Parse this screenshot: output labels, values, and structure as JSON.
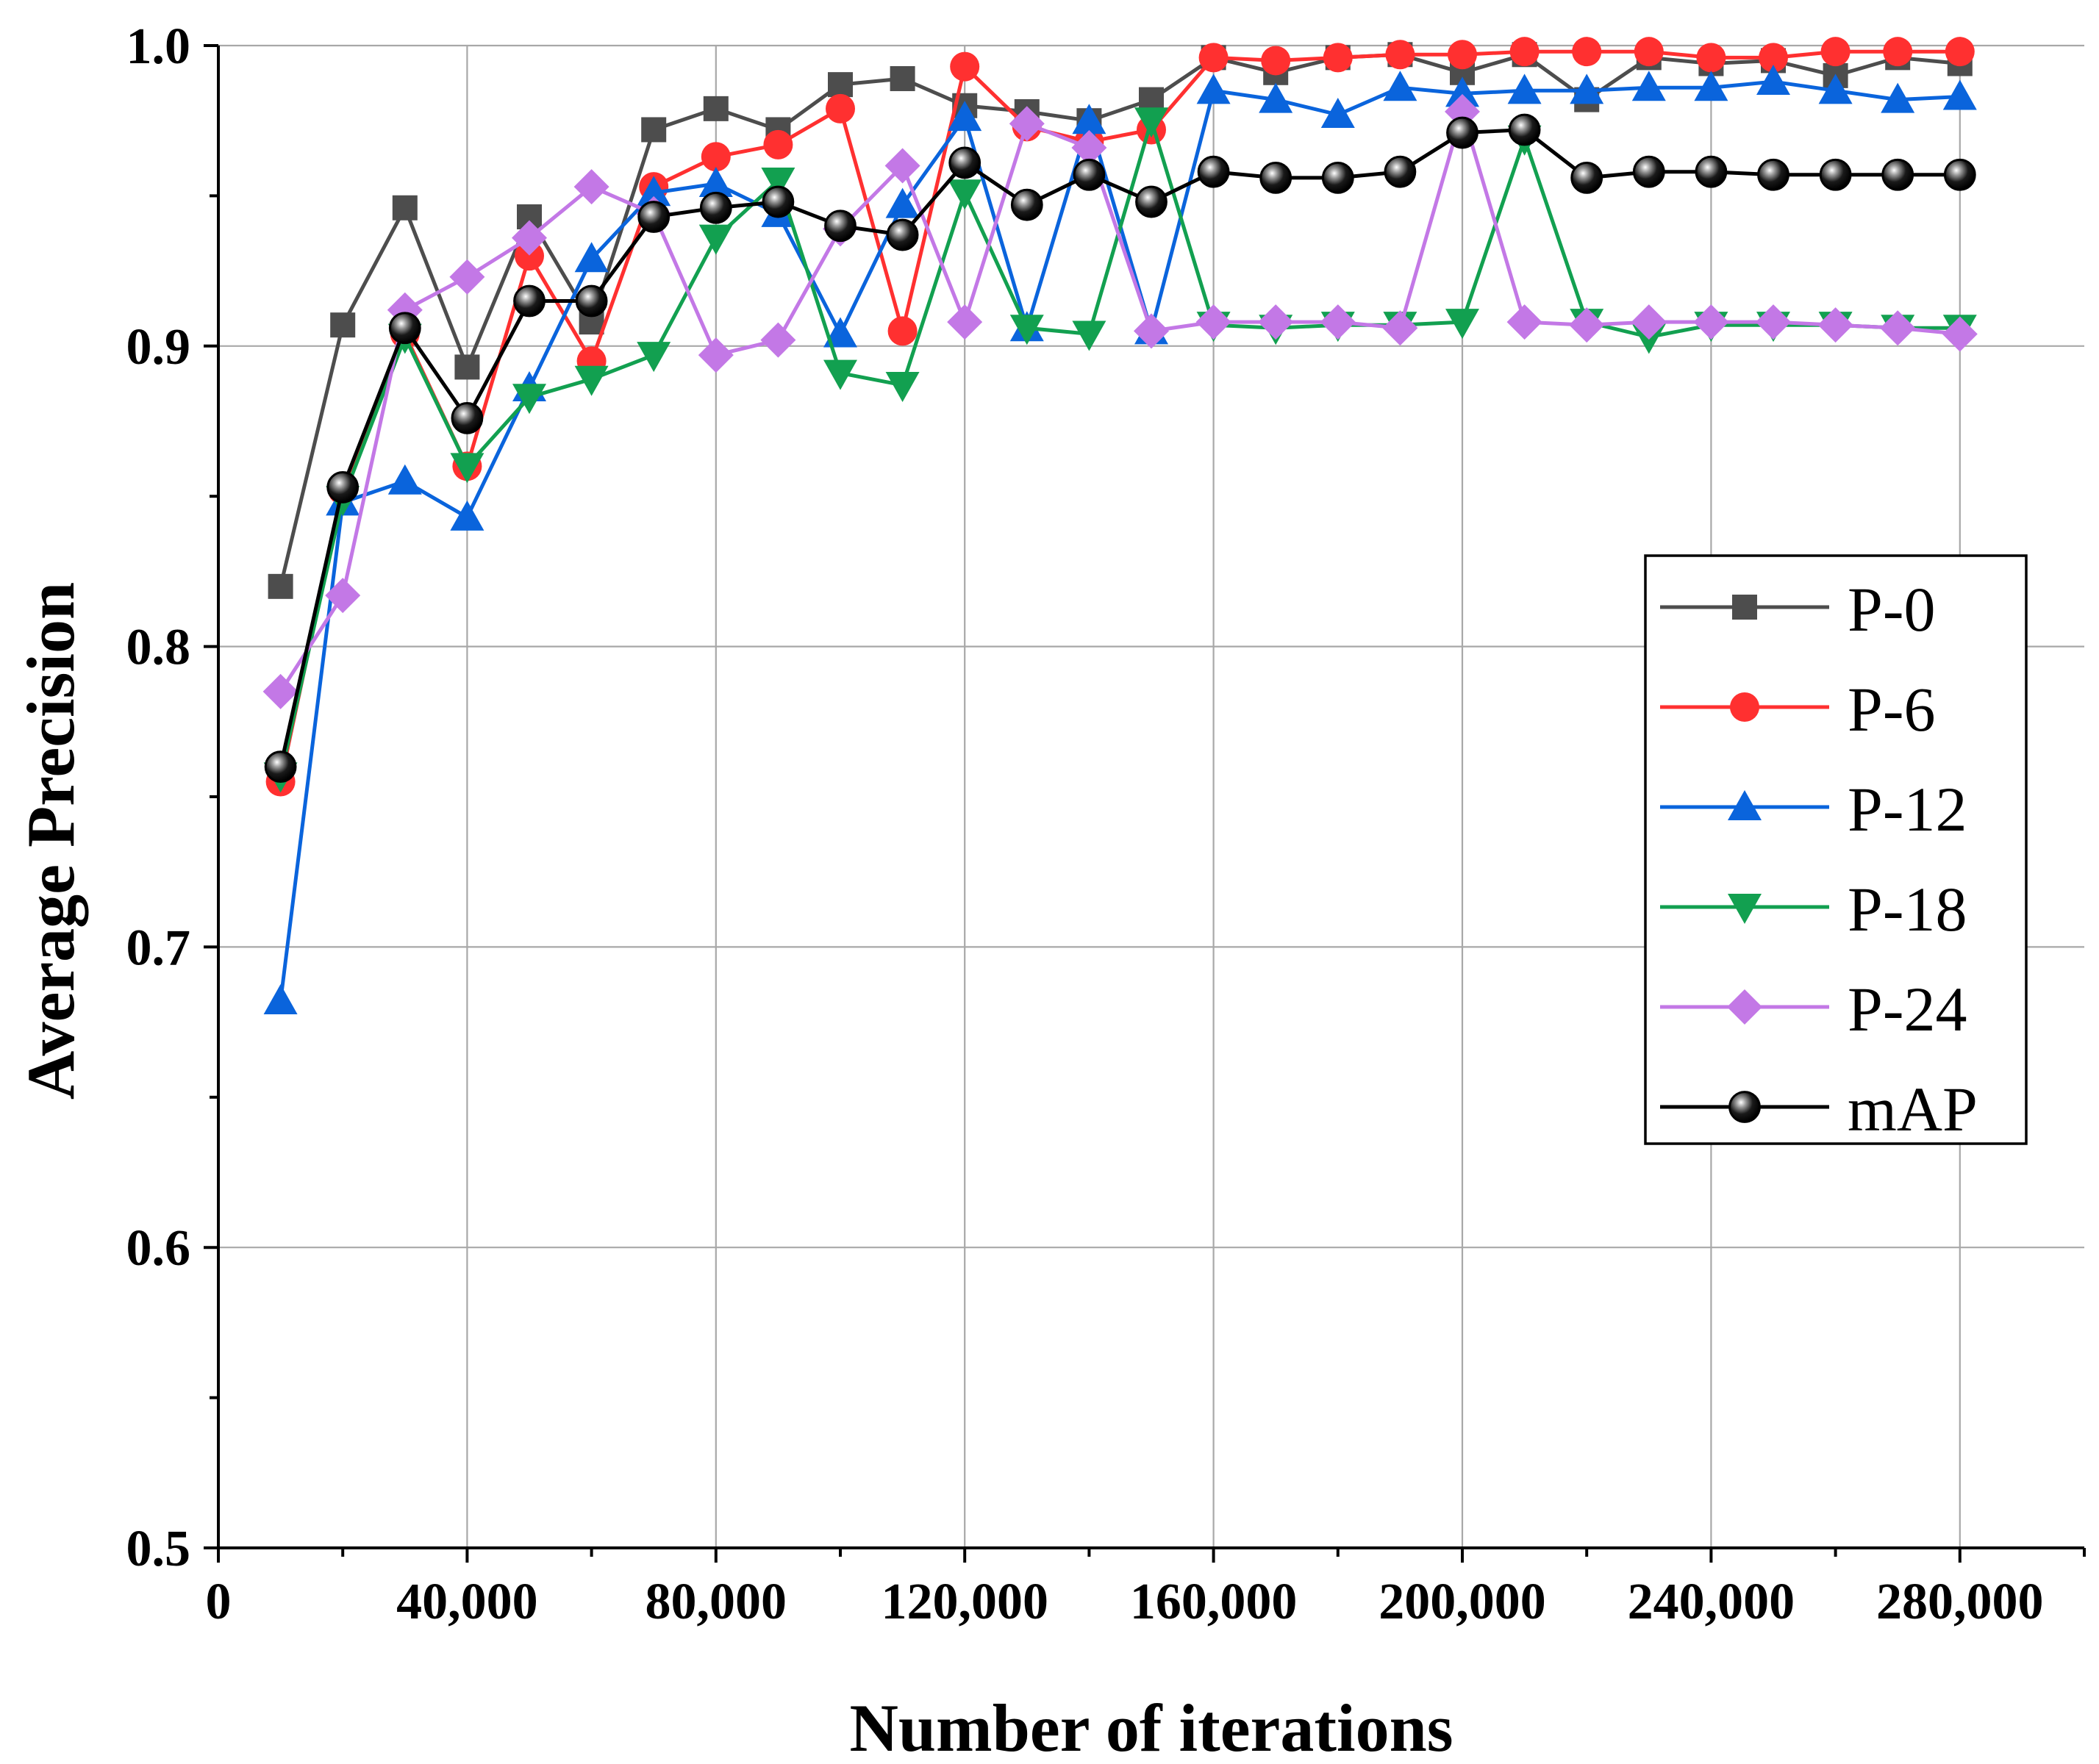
{
  "chart_data": {
    "type": "line",
    "title": "",
    "xlabel": "Number of iterations",
    "ylabel": "Average  Precision",
    "xlim": [
      0,
      300000
    ],
    "ylim": [
      0.5,
      1.0
    ],
    "x_ticks": [
      0,
      40000,
      80000,
      120000,
      160000,
      200000,
      240000,
      280000
    ],
    "x_tick_labels": [
      "0",
      "40,000",
      "80,000",
      "120,000",
      "160,000",
      "200,000",
      "240,000",
      "280,000"
    ],
    "y_ticks": [
      0.5,
      0.6,
      0.7,
      0.8,
      0.9,
      1.0
    ],
    "y_tick_labels": [
      "0.5",
      "0.6",
      "0.7",
      "0.8",
      "0.9",
      "1.0"
    ],
    "grid": true,
    "legend_position": "right",
    "x": [
      10000,
      20000,
      30000,
      40000,
      50000,
      60000,
      70000,
      80000,
      90000,
      100000,
      110000,
      120000,
      130000,
      140000,
      150000,
      160000,
      170000,
      180000,
      190000,
      200000,
      210000,
      220000,
      230000,
      240000,
      250000,
      260000,
      270000,
      280000
    ],
    "series": [
      {
        "name": "P-0",
        "color": "#4d4d4d",
        "marker": "square",
        "values": [
          0.82,
          0.907,
          0.946,
          0.893,
          0.943,
          0.908,
          0.972,
          0.979,
          0.972,
          0.987,
          0.989,
          0.98,
          0.978,
          0.975,
          0.982,
          0.996,
          0.991,
          0.996,
          0.997,
          0.991,
          0.997,
          0.982,
          0.996,
          0.994,
          0.995,
          0.99,
          0.996,
          0.994
        ]
      },
      {
        "name": "P-6",
        "color": "#ff3030",
        "marker": "circle",
        "values": [
          0.755,
          0.852,
          0.904,
          0.86,
          0.93,
          0.895,
          0.953,
          0.963,
          0.967,
          0.979,
          0.905,
          0.993,
          0.973,
          0.968,
          0.972,
          0.996,
          0.995,
          0.996,
          0.997,
          0.997,
          0.998,
          0.998,
          0.998,
          0.996,
          0.996,
          0.998,
          0.998,
          0.998
        ]
      },
      {
        "name": "P-12",
        "color": "#0a64dc",
        "marker": "triangle-up",
        "values": [
          0.682,
          0.848,
          0.855,
          0.843,
          0.886,
          0.929,
          0.951,
          0.954,
          0.944,
          0.904,
          0.947,
          0.976,
          0.906,
          0.975,
          0.905,
          0.985,
          0.982,
          0.977,
          0.986,
          0.984,
          0.985,
          0.985,
          0.986,
          0.986,
          0.988,
          0.985,
          0.982,
          0.983
        ]
      },
      {
        "name": "P-18",
        "color": "#12a050",
        "marker": "triangle-down",
        "values": [
          0.757,
          0.849,
          0.903,
          0.86,
          0.883,
          0.889,
          0.897,
          0.936,
          0.955,
          0.891,
          0.887,
          0.951,
          0.906,
          0.904,
          0.975,
          0.907,
          0.906,
          0.907,
          0.907,
          0.908,
          0.969,
          0.908,
          0.903,
          0.907,
          0.907,
          0.907,
          0.906,
          0.906
        ]
      },
      {
        "name": "P-24",
        "color": "#c378e6",
        "marker": "diamond",
        "values": [
          0.785,
          0.817,
          0.912,
          0.923,
          0.936,
          0.953,
          0.944,
          0.897,
          0.902,
          0.939,
          0.96,
          0.908,
          0.974,
          0.966,
          0.905,
          0.908,
          0.908,
          0.908,
          0.906,
          0.978,
          0.908,
          0.907,
          0.908,
          0.908,
          0.908,
          0.907,
          0.906,
          0.904
        ]
      },
      {
        "name": "mAP",
        "color": "#000000",
        "marker": "circle-black",
        "values": [
          0.76,
          0.853,
          0.906,
          0.876,
          0.915,
          0.915,
          0.943,
          0.946,
          0.948,
          0.94,
          0.937,
          0.961,
          0.947,
          0.957,
          0.948,
          0.958,
          0.956,
          0.956,
          0.958,
          0.971,
          0.972,
          0.956,
          0.958,
          0.958,
          0.957,
          0.957,
          0.957,
          0.957
        ]
      }
    ]
  }
}
